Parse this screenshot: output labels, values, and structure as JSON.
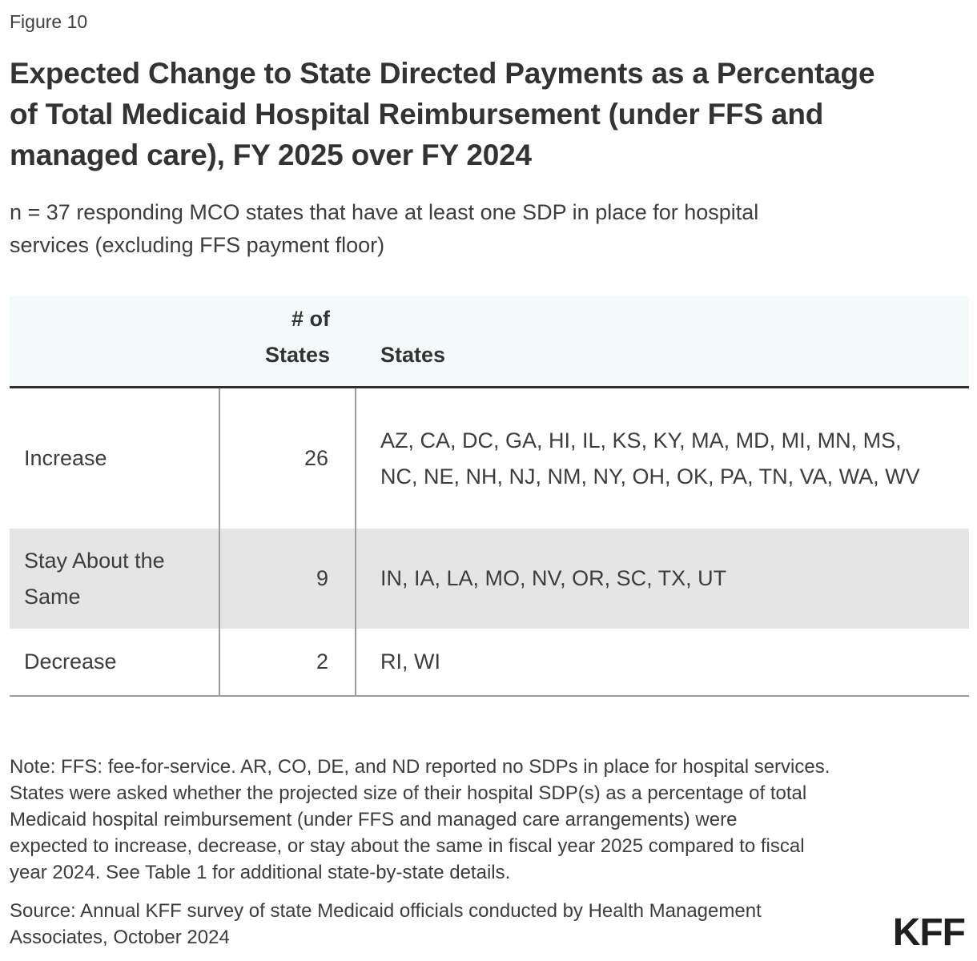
{
  "figure_label": "Figure 10",
  "title_lines": [
    "Expected Change to State Directed Payments as a Percentage",
    "of Total Medicaid Hospital Reimbursement (under FFS and",
    "managed care), FY 2025 over FY 2024"
  ],
  "subtitle_lines": [
    "n = 37 responding MCO states that have at least one SDP in place for hospital",
    "services (excluding FFS payment floor)"
  ],
  "chart_data": {
    "type": "table",
    "title": "Expected Change to State Directed Payments as a Percentage of Total Medicaid Hospital Reimbursement (under FFS and managed care), FY 2025 over FY 2024",
    "subtitle": "n = 37 responding MCO states that have at least one SDP in place for hospital services (excluding FFS payment floor)",
    "columns": [
      "",
      "# of States",
      "States"
    ],
    "rows": [
      {
        "category": "Increase",
        "num_states": 26,
        "states": "AZ, CA, DC, GA, HI, IL, KS, KY, MA, MD, MI, MN, MS, NC, NE, NH, NJ, NM, NY, OH, OK, PA, TN, VA, WA, WV"
      },
      {
        "category": "Stay About the Same",
        "num_states": 9,
        "states": "IN, IA, LA, MO, NV, OR, SC, TX, UT"
      },
      {
        "category": "Decrease",
        "num_states": 2,
        "states": "RI, WI"
      }
    ]
  },
  "table_header": {
    "col2_lines": [
      "# of",
      "States"
    ],
    "col3": "States"
  },
  "note_lines": [
    "Note: FFS: fee-for-service. AR, CO, DE, and ND reported no SDPs in place for hospital services.",
    "States were asked whether the projected size of their hospital SDP(s) as a percentage of total",
    "Medicaid hospital reimbursement (under FFS and managed care arrangements) were",
    "expected to increase, decrease, or stay about the same in fiscal year 2025 compared to fiscal",
    "year 2024. See Table 1 for additional state-by-state details."
  ],
  "source_lines": [
    "Source: Annual KFF survey of state Medicaid officials conducted by Health Management",
    "Associates, October 2024"
  ],
  "logo_text": "KFF",
  "colors": {
    "header_bg": "#f4fafa",
    "highlight_row_bg": "#e5e5e5",
    "header_underline": "#2f2f2f",
    "grid_line": "#9c9c9c",
    "text": "#3d3d3d",
    "title_text": "#333333",
    "logo": "#1f1f1f"
  }
}
